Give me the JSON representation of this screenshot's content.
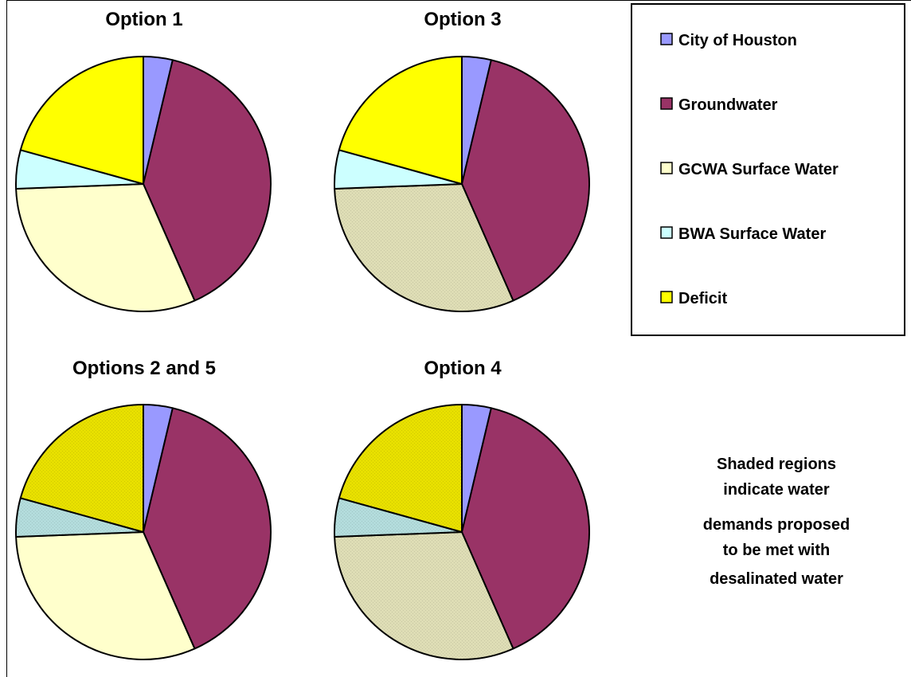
{
  "legend": {
    "items": [
      {
        "label": "City of Houston",
        "color": "#9999ff"
      },
      {
        "label": "Groundwater",
        "color": "#993366"
      },
      {
        "label": "GCWA Surface Water",
        "color": "#ffffcc"
      },
      {
        "label": "BWA Surface Water",
        "color": "#ccffff"
      },
      {
        "label": "Deficit",
        "color": "#ffff00"
      }
    ]
  },
  "note": {
    "lines": [
      "Shaded regions",
      "indicate water",
      "demands proposed",
      "to be met with",
      "desalinated water"
    ]
  },
  "colors": {
    "shaded_gcwa": "#deddb5",
    "shaded_bwa": "#b3dcdc",
    "shaded_deficit": "#e8e000"
  },
  "chart_data": [
    {
      "type": "pie",
      "title": "Option 1",
      "categories": [
        "City of Houston",
        "Groundwater",
        "GCWA Surface Water",
        "BWA Surface Water",
        "Deficit"
      ],
      "values": [
        3.7,
        39.7,
        31.0,
        4.9,
        20.7
      ],
      "shaded": [
        false,
        false,
        false,
        false,
        false
      ]
    },
    {
      "type": "pie",
      "title": "Option 3",
      "categories": [
        "City of Houston",
        "Groundwater",
        "GCWA Surface Water",
        "BWA Surface Water",
        "Deficit"
      ],
      "values": [
        3.7,
        39.7,
        31.0,
        4.9,
        20.7
      ],
      "shaded": [
        false,
        false,
        true,
        false,
        false
      ]
    },
    {
      "type": "pie",
      "title": "Options 2 and 5",
      "categories": [
        "City of Houston",
        "Groundwater",
        "GCWA Surface Water",
        "BWA Surface Water",
        "Deficit"
      ],
      "values": [
        3.7,
        39.7,
        31.0,
        4.9,
        20.7
      ],
      "shaded": [
        false,
        false,
        false,
        true,
        true
      ]
    },
    {
      "type": "pie",
      "title": "Option 4",
      "categories": [
        "City of Houston",
        "Groundwater",
        "GCWA Surface Water",
        "BWA Surface Water",
        "Deficit"
      ],
      "values": [
        3.7,
        39.7,
        31.0,
        4.9,
        20.7
      ],
      "shaded": [
        false,
        false,
        true,
        true,
        true
      ]
    }
  ]
}
